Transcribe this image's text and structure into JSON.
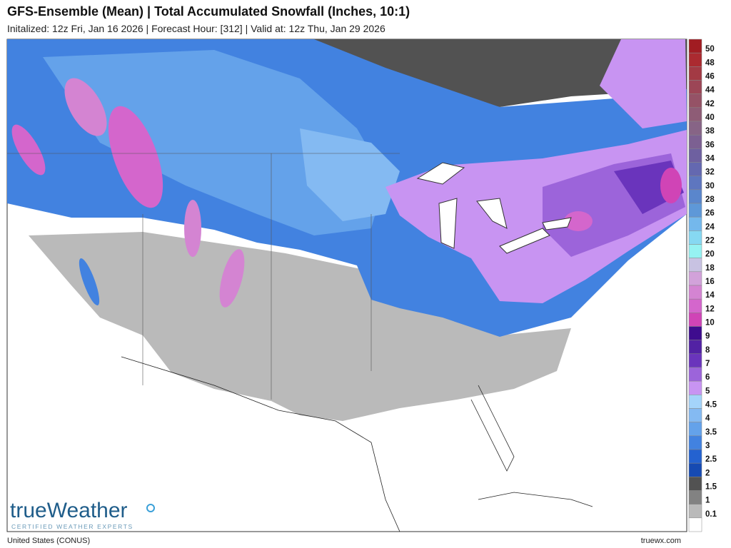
{
  "header": {
    "title": "GFS-Ensemble (Mean) | Total Accumulated Snowfall (Inches, 10:1)",
    "subtitle": "Initalized: 12z Fri, Jan 16 2026  |  Forecast Hour: [312]  |  Valid at: 12z Thu, Jan 29 2026"
  },
  "logo": {
    "name": "trueWeather",
    "tagline": "CERTIFIED WEATHER EXPERTS"
  },
  "footer": {
    "region": "United States (CONUS)",
    "site": "truewx.com"
  },
  "legend": {
    "labels": [
      "50",
      "48",
      "46",
      "44",
      "42",
      "40",
      "38",
      "36",
      "34",
      "32",
      "30",
      "28",
      "26",
      "24",
      "22",
      "20",
      "18",
      "16",
      "14",
      "12",
      "10",
      "9",
      "8",
      "7",
      "6",
      "5",
      "4.5",
      "4",
      "3.5",
      "3",
      "2.5",
      "2",
      "1.5",
      "1",
      "0.1"
    ],
    "colors": [
      "#a11c22",
      "#ab2a30",
      "#a33a44",
      "#9c4656",
      "#955266",
      "#8e5c76",
      "#876486",
      "#7c6092",
      "#6e60a0",
      "#6468b0",
      "#5e76bf",
      "#5a86cc",
      "#5e98d8",
      "#74b8ec",
      "#86d8f2",
      "#96f2f2",
      "#c8c2e2",
      "#d2a2da",
      "#d484d2",
      "#d466cc",
      "#d044b6",
      "#3e0c8e",
      "#5222a4",
      "#6a34bc",
      "#9c64da",
      "#c894f2",
      "#a4d4fa",
      "#84baf2",
      "#64a2ea",
      "#4282e0",
      "#2462d0",
      "#164ab2",
      "#525252",
      "#828282",
      "#bababa",
      "#ffffff"
    ]
  }
}
